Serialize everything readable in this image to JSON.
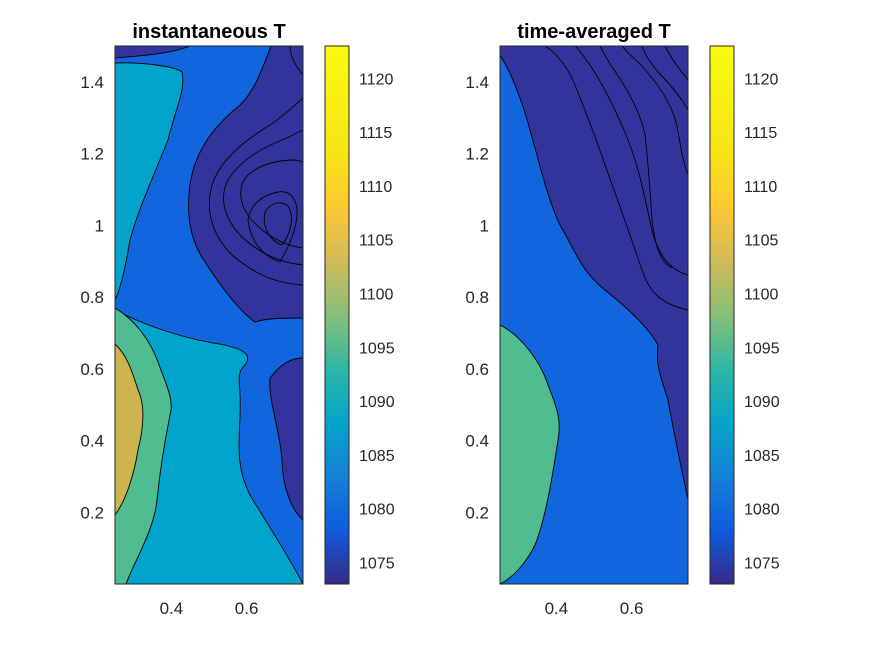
{
  "chart_data": [
    {
      "type": "heatmap",
      "title": "instantaneous T",
      "xlabel": "",
      "ylabel": "",
      "xlim": [
        0.25,
        0.75
      ],
      "ylim": [
        0,
        1.5
      ],
      "x_ticks": [
        "0.4",
        "0.6"
      ],
      "y_ticks": [
        "0.2",
        "0.4",
        "0.6",
        "0.8",
        "1",
        "1.2",
        "1.4"
      ],
      "colorbar": {
        "range": [
          1073,
          1123
        ],
        "ticks": [
          "1075",
          "1080",
          "1085",
          "1090",
          "1095",
          "1100",
          "1105",
          "1110",
          "1115",
          "1120"
        ],
        "colormap": "parula"
      },
      "regions": [
        {
          "level": 1077.5,
          "color": "#1165dd",
          "desc": "background / central band"
        },
        {
          "level": 1088.5,
          "color": "#03a4cb",
          "desc": "left vertical band"
        },
        {
          "level": 1101,
          "color": "#4fbd8f",
          "desc": "lower-left"
        },
        {
          "level": 1108,
          "color": "#cdb44f",
          "desc": "bottom-left hot spot"
        },
        {
          "level": 1073.5,
          "color": "#33349b",
          "desc": "upper-right cold region"
        },
        {
          "level": 1073.5,
          "color": "#33349b",
          "desc": "lower-right cold strip"
        }
      ]
    },
    {
      "type": "heatmap",
      "title": "time-averaged T",
      "xlabel": "",
      "ylabel": "",
      "xlim": [
        0.25,
        0.75
      ],
      "ylim": [
        0,
        1.5
      ],
      "x_ticks": [
        "0.4",
        "0.6"
      ],
      "y_ticks": [
        "0.2",
        "0.4",
        "0.6",
        "0.8",
        "1",
        "1.2",
        "1.4"
      ],
      "colorbar": {
        "range": [
          1073,
          1123
        ],
        "ticks": [
          "1075",
          "1080",
          "1085",
          "1090",
          "1095",
          "1100",
          "1105",
          "1110",
          "1115",
          "1120"
        ],
        "colormap": "parula"
      },
      "regions": [
        {
          "level": 1080,
          "color": "#1165dd",
          "desc": "main region"
        },
        {
          "level": 1073.5,
          "color": "#33349b",
          "desc": "upper-right cold region"
        },
        {
          "level": 1101,
          "color": "#4fbd8f",
          "desc": "lower-left warm region"
        }
      ]
    }
  ],
  "colors": {
    "cold": "#33349b",
    "blue": "#1165dd",
    "cyan": "#03a4cb",
    "green": "#4fbd8f",
    "gold": "#cdb44f"
  }
}
